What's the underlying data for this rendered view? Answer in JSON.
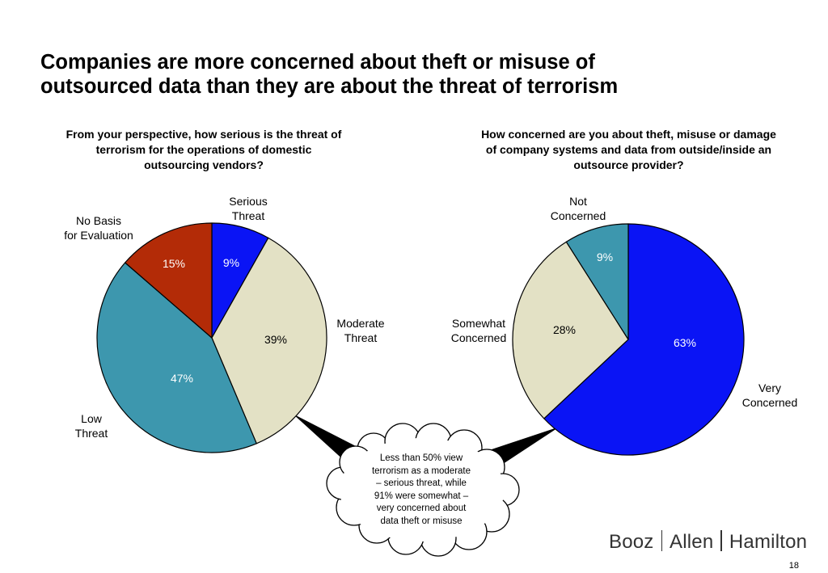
{
  "title": {
    "line1": "Companies are more concerned about theft or misuse of",
    "line2": "outsourced data than they are about the threat of terrorism"
  },
  "chart_data": [
    {
      "type": "pie",
      "title_lines": [
        "From your perspective, how serious is the threat of",
        "terrorism for the operations of domestic",
        "outsourcing vendors?"
      ],
      "categories": [
        {
          "name_lines": [
            "Serious",
            "Threat"
          ],
          "value": 9,
          "label": "9%",
          "color": "#0a14f5"
        },
        {
          "name_lines": [
            "Moderate",
            "Threat"
          ],
          "value": 39,
          "label": "39%",
          "color": "#e3e1c5"
        },
        {
          "name_lines": [
            "Low",
            "Threat"
          ],
          "value": 47,
          "label": "47%",
          "color": "#3d97ae"
        },
        {
          "name_lines": [
            "No Basis",
            "for Evaluation"
          ],
          "value": 15,
          "label": "15%",
          "color": "#b32b07"
        }
      ]
    },
    {
      "type": "pie",
      "title_lines": [
        "How concerned are you about theft, misuse or damage",
        "of company systems and data from outside/inside an",
        "outsource provider?"
      ],
      "categories": [
        {
          "name_lines": [
            "Very",
            "Concerned"
          ],
          "value": 63,
          "label": "63%",
          "color": "#0a14f5"
        },
        {
          "name_lines": [
            "Somewhat",
            "Concerned"
          ],
          "value": 28,
          "label": "28%",
          "color": "#e3e1c5"
        },
        {
          "name_lines": [
            "Not",
            "Concerned"
          ],
          "value": 9,
          "label": "9%",
          "color": "#3d97ae"
        }
      ]
    }
  ],
  "callout": {
    "lines": [
      "Less than 50% view",
      "terrorism as a moderate",
      "– serious threat, while",
      "91% were somewhat –",
      "very concerned about",
      "data theft or misuse"
    ]
  },
  "logo": {
    "part1": "Booz",
    "part2": "Allen",
    "part3": "Hamilton"
  },
  "page_number": "18"
}
